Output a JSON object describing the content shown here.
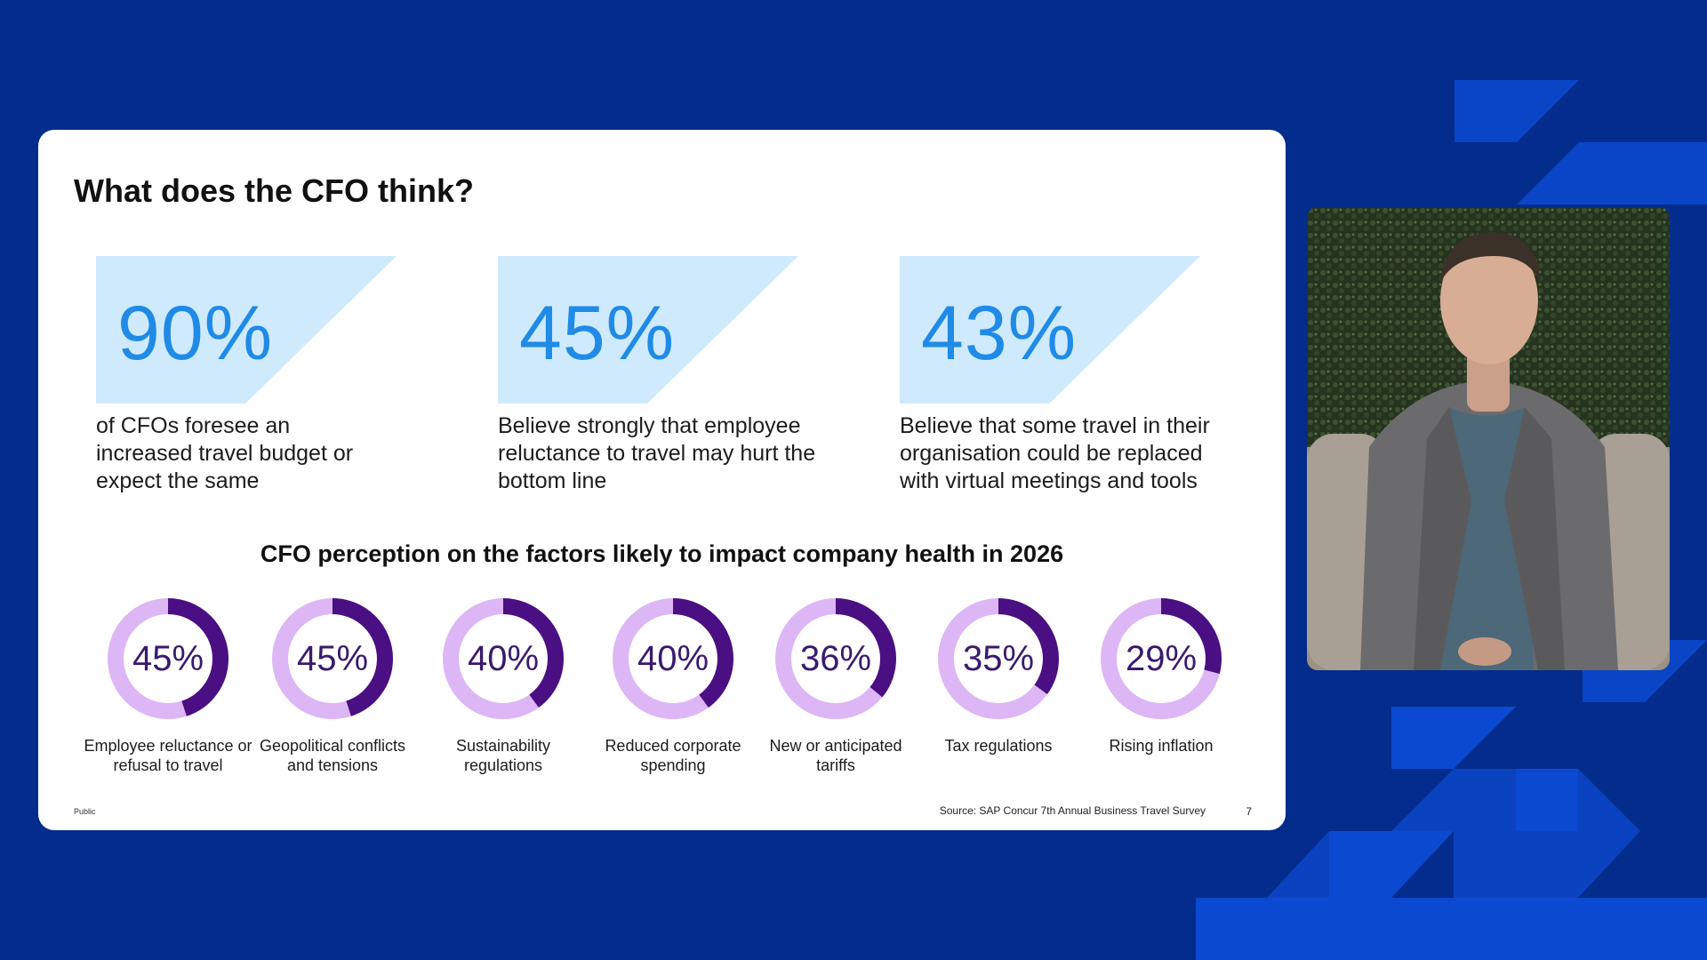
{
  "slide": {
    "title": "What does the CFO think?",
    "stats": [
      {
        "value": "90%",
        "text": "of CFOs foresee an increased travel budget or expect the same"
      },
      {
        "value": "45%",
        "text": "Believe strongly that employee reluctance to travel may hurt the bottom line"
      },
      {
        "value": "43%",
        "text": "Believe that some travel in their organisation could be replaced with virtual meetings and tools"
      }
    ],
    "section_title": "CFO perception on the factors likely to impact company health in 2026",
    "factors": [
      {
        "percent": 45,
        "value_label": "45%",
        "label": "Employee reluctance or refusal to travel"
      },
      {
        "percent": 45,
        "value_label": "45%",
        "label": "Geopolitical conflicts and tensions"
      },
      {
        "percent": 40,
        "value_label": "40%",
        "label": "Sustainability regulations"
      },
      {
        "percent": 40,
        "value_label": "40%",
        "label": "Reduced corporate spending"
      },
      {
        "percent": 36,
        "value_label": "36%",
        "label": "New or anticipated tariffs"
      },
      {
        "percent": 35,
        "value_label": "35%",
        "label": "Tax regulations"
      },
      {
        "percent": 29,
        "value_label": "29%",
        "label": "Rising inflation"
      }
    ],
    "footer_classification": "Public",
    "footer_source": "Source: SAP Concur 7th Annual Business Travel Survey",
    "page_number": "7"
  },
  "colors": {
    "background": "#042c8c",
    "stat_band": "#cfeafc",
    "stat_value": "#1f8be6",
    "donut_track": "#ddb6f5",
    "donut_fill": "#4a0f82"
  },
  "video": {
    "icon": "presenter-video-icon"
  }
}
